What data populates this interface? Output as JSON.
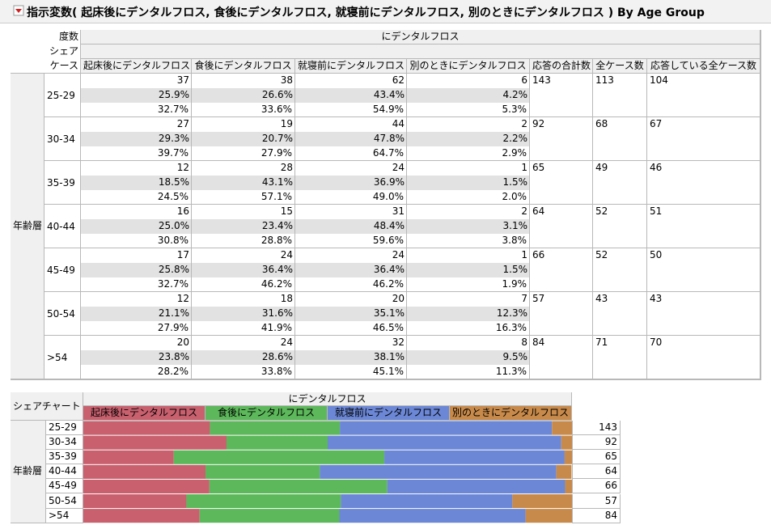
{
  "header": {
    "title": "指示変数( 起床後にデンタルフロス, 食後にデンタルフロス, 就寝前にデンタルフロス, 別のときにデンタルフロス ) By Age Group"
  },
  "table": {
    "row_labels": [
      "度数",
      "シェア",
      "ケース"
    ],
    "group_label": "にデンタルフロス",
    "row_group": "年齢層",
    "columns": [
      "起床後にデンタルフロス",
      "食後にデンタルフロス",
      "就寝前にデンタルフロス",
      "別のときにデンタルフロス",
      "応答の合計数",
      "全ケース数",
      "応答している全ケース数"
    ],
    "rows": [
      {
        "age": "25-29",
        "counts": [
          37,
          38,
          62,
          6
        ],
        "shares": [
          "25.9%",
          "26.6%",
          "43.4%",
          "4.2%"
        ],
        "cases": [
          "32.7%",
          "33.6%",
          "54.9%",
          "5.3%"
        ],
        "total": 143,
        "all_cases": 113,
        "responding": 104
      },
      {
        "age": "30-34",
        "counts": [
          27,
          19,
          44,
          2
        ],
        "shares": [
          "29.3%",
          "20.7%",
          "47.8%",
          "2.2%"
        ],
        "cases": [
          "39.7%",
          "27.9%",
          "64.7%",
          "2.9%"
        ],
        "total": 92,
        "all_cases": 68,
        "responding": 67
      },
      {
        "age": "35-39",
        "counts": [
          12,
          28,
          24,
          1
        ],
        "shares": [
          "18.5%",
          "43.1%",
          "36.9%",
          "1.5%"
        ],
        "cases": [
          "24.5%",
          "57.1%",
          "49.0%",
          "2.0%"
        ],
        "total": 65,
        "all_cases": 49,
        "responding": 46
      },
      {
        "age": "40-44",
        "counts": [
          16,
          15,
          31,
          2
        ],
        "shares": [
          "25.0%",
          "23.4%",
          "48.4%",
          "3.1%"
        ],
        "cases": [
          "30.8%",
          "28.8%",
          "59.6%",
          "3.8%"
        ],
        "total": 64,
        "all_cases": 52,
        "responding": 51
      },
      {
        "age": "45-49",
        "counts": [
          17,
          24,
          24,
          1
        ],
        "shares": [
          "25.8%",
          "36.4%",
          "36.4%",
          "1.5%"
        ],
        "cases": [
          "32.7%",
          "46.2%",
          "46.2%",
          "1.9%"
        ],
        "total": 66,
        "all_cases": 52,
        "responding": 50
      },
      {
        "age": "50-54",
        "counts": [
          12,
          18,
          20,
          7
        ],
        "shares": [
          "21.1%",
          "31.6%",
          "35.1%",
          "12.3%"
        ],
        "cases": [
          "27.9%",
          "41.9%",
          "46.5%",
          "16.3%"
        ],
        "total": 57,
        "all_cases": 43,
        "responding": 43
      },
      {
        "age": ">54",
        "counts": [
          20,
          24,
          32,
          8
        ],
        "shares": [
          "23.8%",
          "28.6%",
          "38.1%",
          "9.5%"
        ],
        "cases": [
          "28.2%",
          "33.8%",
          "45.1%",
          "11.3%"
        ],
        "total": 84,
        "all_cases": 71,
        "responding": 70
      }
    ]
  },
  "share_chart": {
    "title": "シェアチャート",
    "group_label": "にデンタルフロス",
    "row_group": "年齢層",
    "categories": [
      "25-29",
      "30-34",
      "35-39",
      "40-44",
      "45-49",
      "50-54",
      ">54"
    ],
    "series": [
      {
        "name": "起床後にデンタルフロス",
        "color": "#c8606e",
        "values": [
          25.9,
          29.3,
          18.5,
          25.0,
          25.8,
          21.1,
          23.8
        ]
      },
      {
        "name": "食後にデンタルフロス",
        "color": "#5cb85a",
        "values": [
          26.6,
          20.7,
          43.1,
          23.4,
          36.4,
          31.6,
          28.6
        ]
      },
      {
        "name": "就寝前にデンタルフロス",
        "color": "#6b87d6",
        "values": [
          43.4,
          47.8,
          36.9,
          48.4,
          36.4,
          35.1,
          38.1
        ]
      },
      {
        "name": "別のときにデンタルフロス",
        "color": "#c88a4a",
        "values": [
          4.2,
          2.2,
          1.5,
          3.1,
          1.5,
          12.3,
          9.5
        ]
      }
    ],
    "totals": [
      143,
      92,
      65,
      64,
      66,
      57,
      84
    ]
  }
}
